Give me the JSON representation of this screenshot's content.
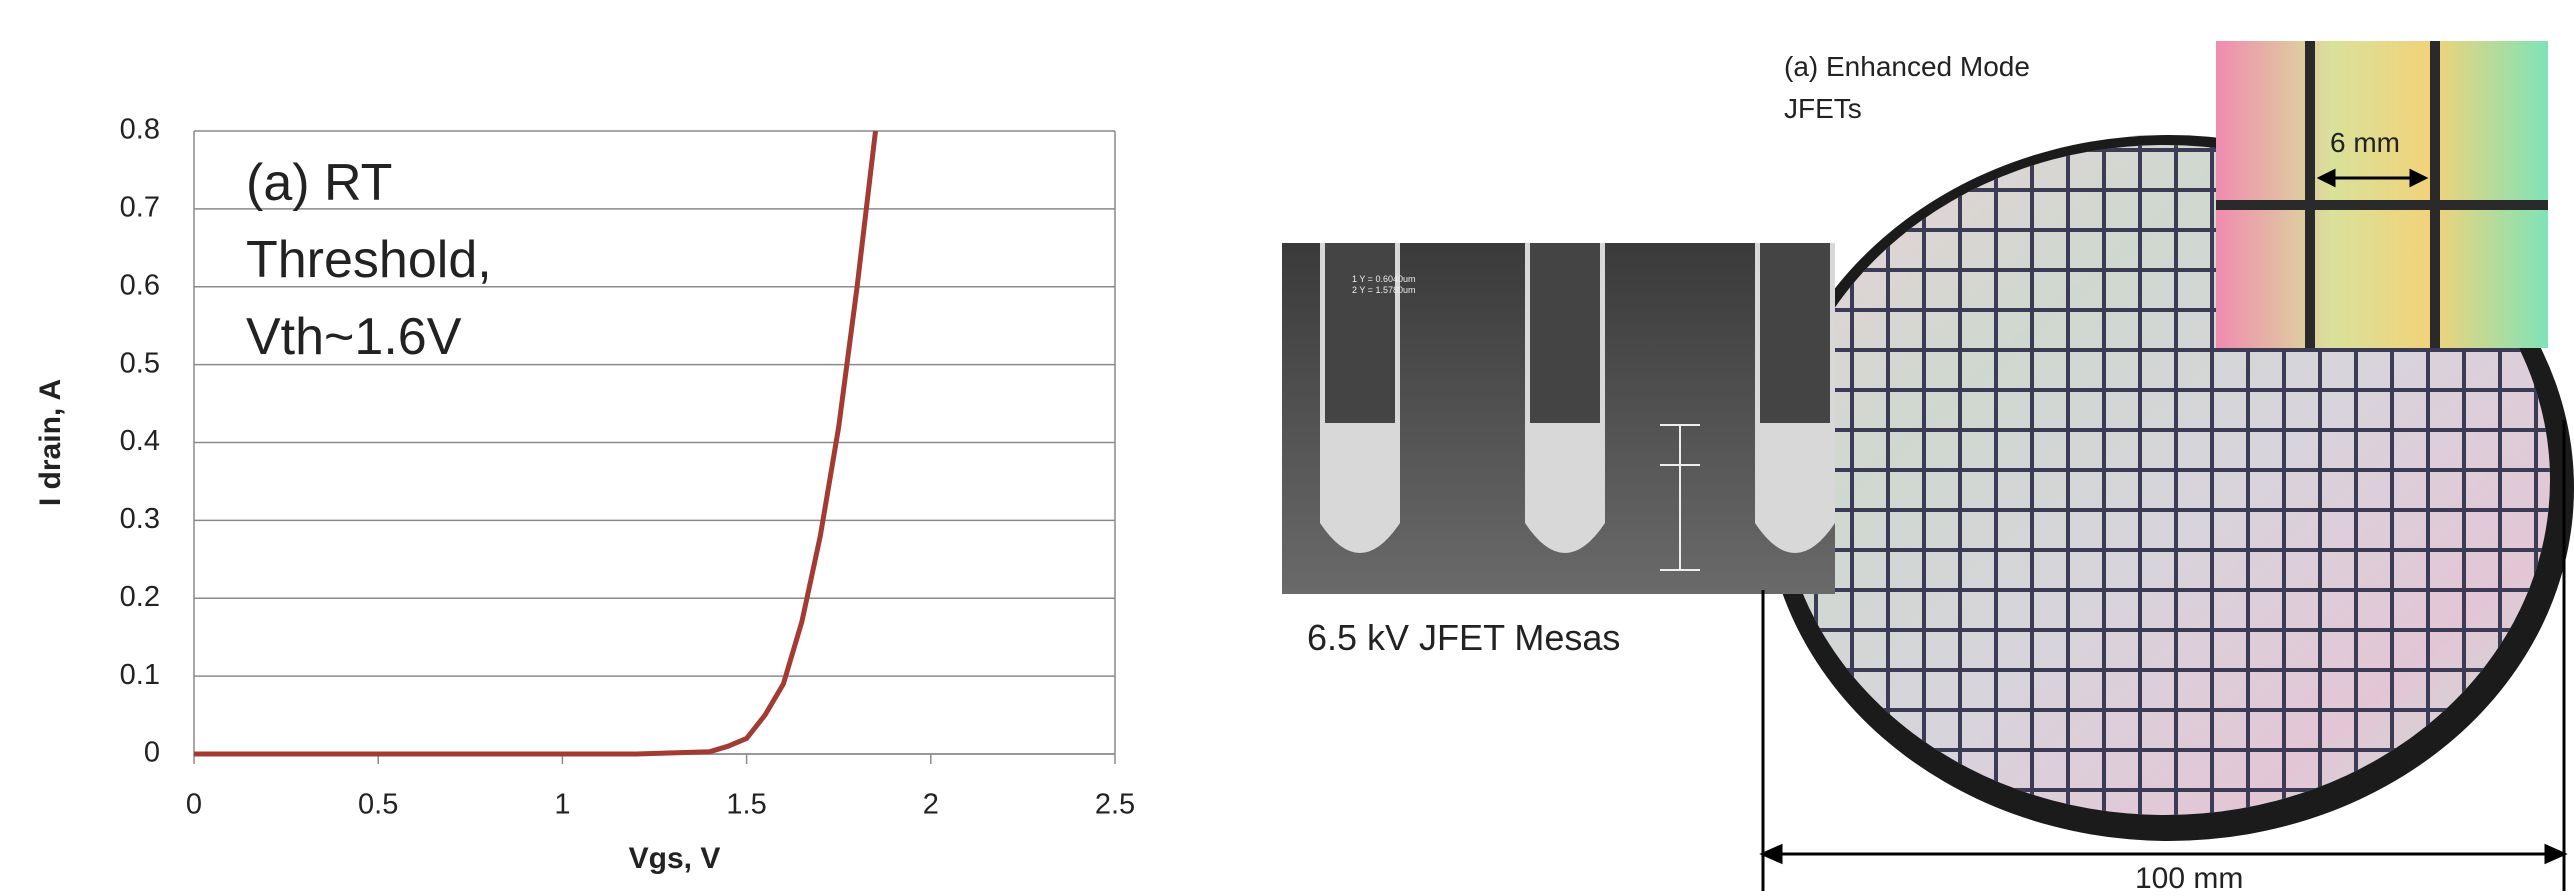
{
  "chart_data": {
    "type": "line",
    "annotation": [
      "(a)  RT",
      "Threshold,",
      "Vth~1.6V"
    ],
    "x_label": "Vgs, V",
    "y_label": "I drain, A",
    "x": [
      0,
      0.2,
      0.4,
      0.6,
      0.8,
      1.0,
      1.2,
      1.4,
      1.45,
      1.5,
      1.55,
      1.6,
      1.65,
      1.7,
      1.75,
      1.8,
      1.85
    ],
    "values": [
      0,
      0,
      0,
      0,
      0,
      0,
      0,
      0.003,
      0.01,
      0.02,
      0.05,
      0.09,
      0.17,
      0.28,
      0.42,
      0.6,
      0.8
    ],
    "color": "#a33b33",
    "xlim": [
      0,
      2.5
    ],
    "xticks": [
      0,
      0.5,
      1,
      1.5,
      2,
      2.5
    ],
    "ylim": [
      0,
      0.8
    ],
    "yticks": [
      0,
      0.1,
      0.2,
      0.3,
      0.4,
      0.5,
      0.6,
      0.7,
      0.8
    ],
    "grid": true
  },
  "photos": {
    "sem_caption": "6.5 kV JFET Mesas",
    "sem_readout": [
      "1 Y = 0.6040um",
      "2 Y = 1.5780um"
    ],
    "wafer_label": [
      "(a) Enhanced Mode",
      "JFETs"
    ],
    "die_size": "6 mm",
    "wafer_size": "100 mm"
  }
}
